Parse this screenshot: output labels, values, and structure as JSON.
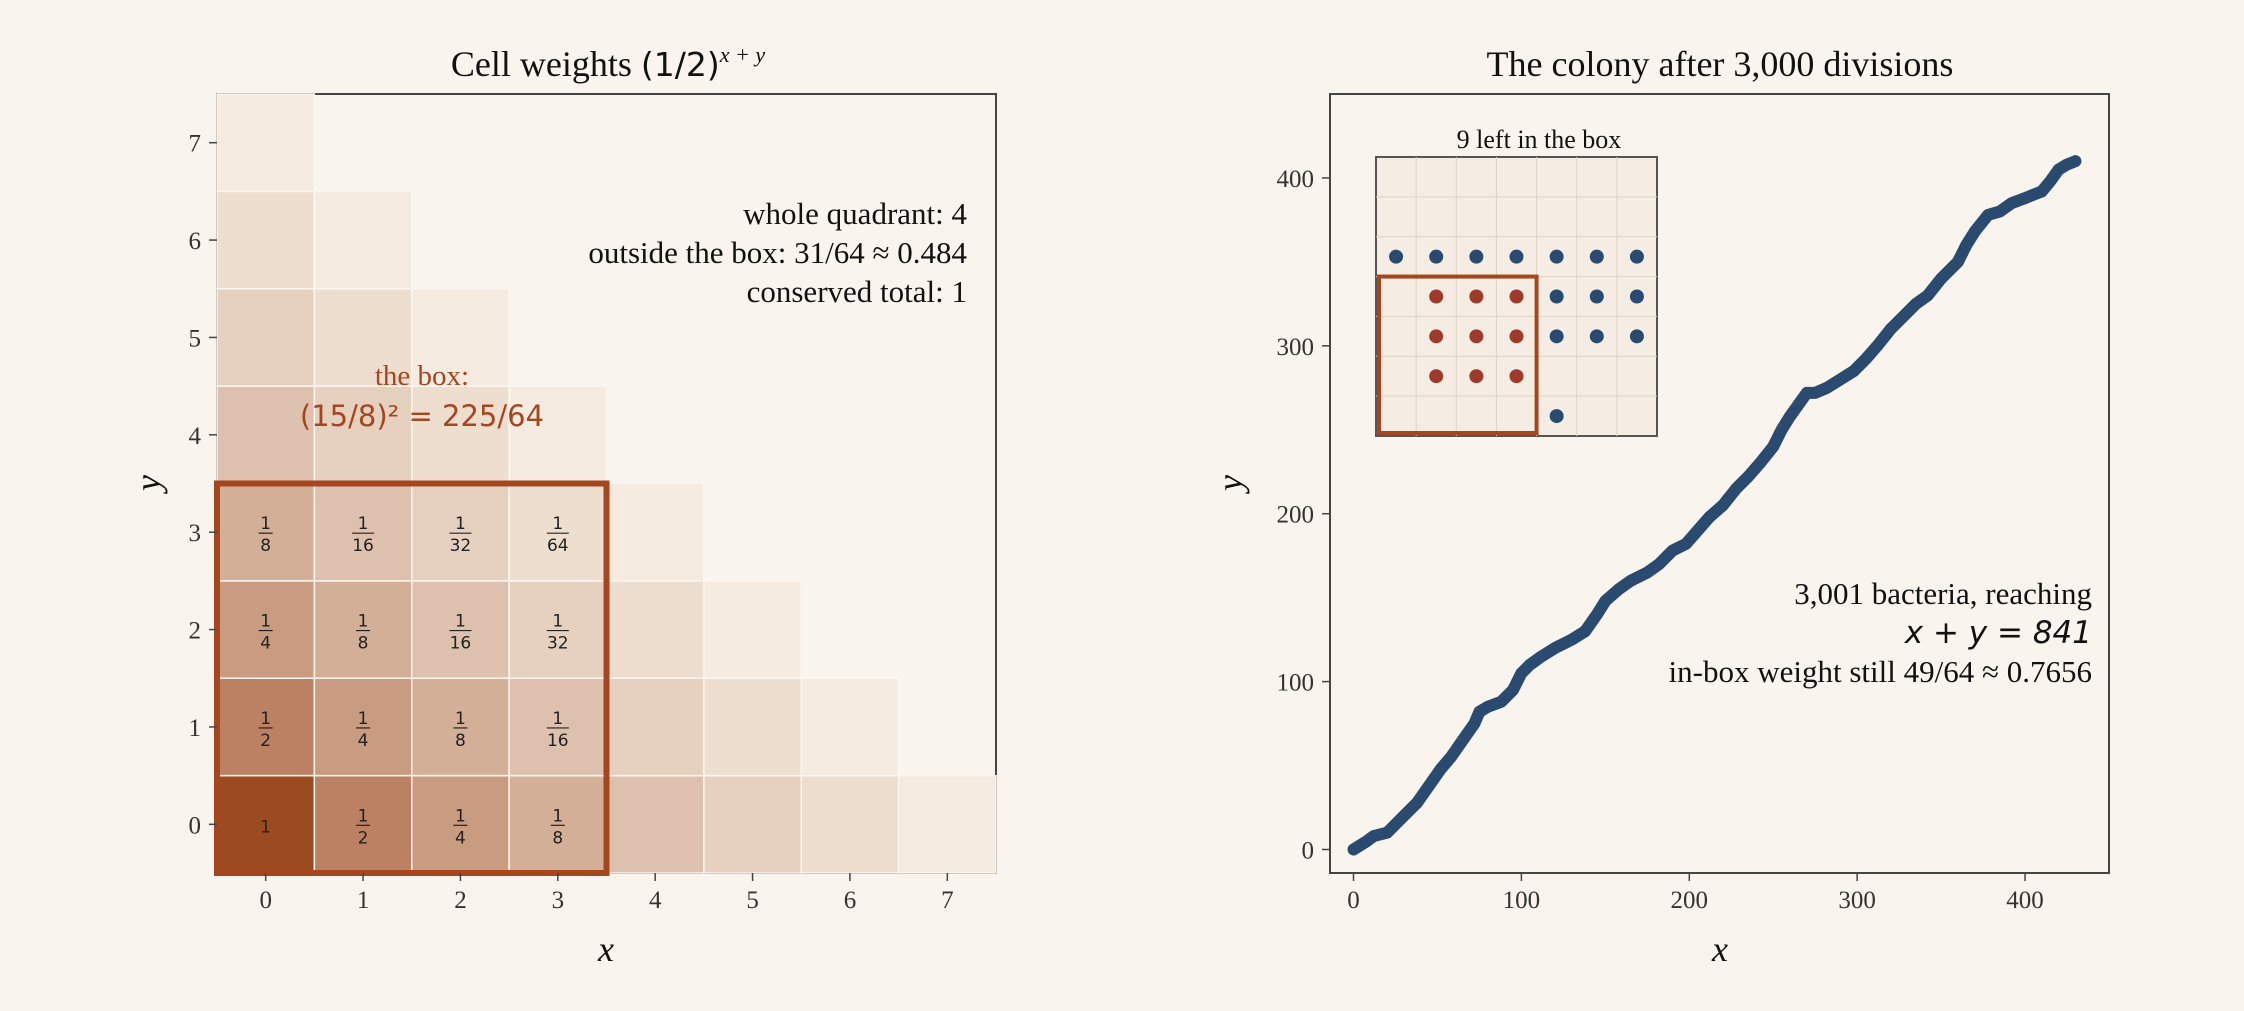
{
  "chart_data": [
    {
      "type": "heatmap",
      "title": "Cell weights (1/2)^{x+y}",
      "title_main": "Cell weights ",
      "title_base": "(1/2)",
      "title_exp": "x + y",
      "xlabel": "x",
      "ylabel": "y",
      "xlim": [
        -0.5,
        7.5
      ],
      "ylim": [
        -0.5,
        7.5
      ],
      "x_ticks": [
        "0",
        "1",
        "2",
        "3",
        "4",
        "5",
        "6",
        "7"
      ],
      "y_ticks": [
        "0",
        "1",
        "2",
        "3",
        "4",
        "5",
        "6",
        "7"
      ],
      "cells_rule": "cell (x,y) shown when x+y <= 7, weight (1/2)^(x+y)",
      "cell_labels": [
        {
          "x": 0,
          "y": 0,
          "label": "1"
        },
        {
          "x": 1,
          "y": 0,
          "label": "1/2"
        },
        {
          "x": 2,
          "y": 0,
          "label": "1/4"
        },
        {
          "x": 3,
          "y": 0,
          "label": "1/8"
        },
        {
          "x": 0,
          "y": 1,
          "label": "1/2"
        },
        {
          "x": 1,
          "y": 1,
          "label": "1/4"
        },
        {
          "x": 2,
          "y": 1,
          "label": "1/8"
        },
        {
          "x": 3,
          "y": 1,
          "label": "1/16"
        },
        {
          "x": 0,
          "y": 2,
          "label": "1/4"
        },
        {
          "x": 1,
          "y": 2,
          "label": "1/8"
        },
        {
          "x": 2,
          "y": 2,
          "label": "1/16"
        },
        {
          "x": 3,
          "y": 2,
          "label": "1/32"
        },
        {
          "x": 0,
          "y": 3,
          "label": "1/8"
        },
        {
          "x": 1,
          "y": 3,
          "label": "1/16"
        },
        {
          "x": 2,
          "y": 3,
          "label": "1/32"
        },
        {
          "x": 3,
          "y": 3,
          "label": "1/64"
        }
      ],
      "box": {
        "x_range": [
          0,
          3
        ],
        "y_range": [
          0,
          3
        ],
        "color": "#a5461f"
      },
      "annotations": {
        "box_label_1": "the box:",
        "box_label_2": "(15/8)² = 225/64",
        "whole": "whole quadrant: 4",
        "outside": "outside the box: 31/64 ≈ 0.484",
        "conserved": "conserved total: 1"
      },
      "colors": {
        "dark": "#9c4a20",
        "light": "#f5ebe0"
      }
    },
    {
      "type": "line",
      "title": "The colony after 3,000 divisions",
      "xlabel": "x",
      "ylabel": "y",
      "xlim": [
        -14,
        450
      ],
      "ylim": [
        -14,
        450
      ],
      "x_ticks": [
        0,
        100,
        200,
        300,
        400
      ],
      "y_ticks": [
        0,
        100,
        200,
        300,
        400
      ],
      "series": [
        {
          "color": "#2b4a6f",
          "x": [
            0,
            8,
            12,
            20,
            25,
            30,
            38,
            45,
            52,
            58,
            65,
            72,
            75,
            80,
            88,
            95,
            100,
            105,
            112,
            120,
            130,
            138,
            145,
            150,
            158,
            165,
            175,
            182,
            190,
            198,
            205,
            212,
            220,
            228,
            235,
            242,
            250,
            255,
            260,
            265,
            270,
            275,
            282,
            290,
            298,
            305,
            312,
            320,
            328,
            335,
            342,
            350,
            355,
            360,
            365,
            370,
            378,
            385,
            392,
            400,
            405,
            410,
            415,
            420,
            425,
            430
          ],
          "y": [
            0,
            5,
            8,
            10,
            15,
            20,
            28,
            38,
            48,
            55,
            65,
            75,
            82,
            85,
            88,
            95,
            105,
            110,
            115,
            120,
            125,
            130,
            140,
            148,
            155,
            160,
            165,
            170,
            178,
            182,
            190,
            198,
            205,
            215,
            222,
            230,
            240,
            250,
            258,
            265,
            272,
            272,
            275,
            280,
            285,
            292,
            300,
            310,
            318,
            325,
            330,
            340,
            345,
            350,
            360,
            368,
            378,
            380,
            385,
            388,
            390,
            392,
            398,
            405,
            408,
            410
          ]
        }
      ],
      "annotations": {
        "line1": "3,001 bacteria, reaching",
        "line2": "x + y = 841",
        "line3": "in-box weight still 49/64 ≈ 0.7656"
      },
      "inset": {
        "title": "9 left in the box",
        "red_points": [
          [
            1,
            1
          ],
          [
            2,
            1
          ],
          [
            3,
            1
          ],
          [
            1,
            2
          ],
          [
            2,
            2
          ],
          [
            3,
            2
          ],
          [
            1,
            3
          ],
          [
            2,
            3
          ],
          [
            3,
            3
          ]
        ],
        "blue_points": [
          [
            0,
            4
          ],
          [
            1,
            4
          ],
          [
            2,
            4
          ],
          [
            3,
            4
          ],
          [
            4,
            4
          ],
          [
            5,
            4
          ],
          [
            6,
            4
          ],
          [
            4,
            3
          ],
          [
            5,
            3
          ],
          [
            6,
            3
          ],
          [
            4,
            2
          ],
          [
            5,
            2
          ],
          [
            6,
            2
          ],
          [
            4,
            0
          ]
        ],
        "grid_x": 7,
        "grid_y": 7,
        "red_color": "#9e3a2c",
        "blue_color": "#2b4a6f"
      }
    }
  ]
}
